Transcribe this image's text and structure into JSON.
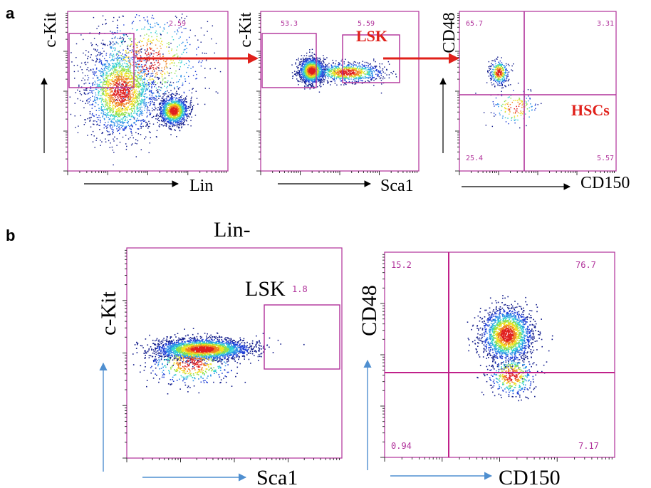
{
  "panels": {
    "a": {
      "letter": "a"
    },
    "b": {
      "letter": "b",
      "subtitle": "Lin-"
    }
  },
  "labels": {
    "red_LSK": "LSK",
    "red_HSCs": "HSCs",
    "b_LSK": "LSK"
  },
  "chart_data": [
    {
      "type": "scatter",
      "panel": "a",
      "plot": 1,
      "xlabel": "Lin",
      "ylabel": "c-Kit",
      "gates": [
        {
          "kind": "rectangle",
          "value": "2.59"
        }
      ],
      "density_populations": [
        {
          "name": "",
          "center": [
            0.33,
            0.5
          ],
          "spread": [
            0.22,
            0.28
          ],
          "count": 2200
        },
        {
          "name": "",
          "center": [
            0.66,
            0.62
          ],
          "spread": [
            0.09,
            0.09
          ],
          "count": 1300
        },
        {
          "name": "",
          "center": [
            0.5,
            0.3
          ],
          "spread": [
            0.35,
            0.3
          ],
          "count": 700
        }
      ]
    },
    {
      "type": "scatter",
      "panel": "a",
      "plot": 2,
      "xlabel": "Sca1",
      "ylabel": "c-Kit",
      "gates": [
        {
          "kind": "rectangle",
          "value": "53.3"
        },
        {
          "kind": "rectangle",
          "value": "5.59"
        }
      ],
      "density_populations": [
        {
          "name": "",
          "center": [
            0.32,
            0.37
          ],
          "spread": [
            0.08,
            0.08
          ],
          "count": 1400
        },
        {
          "name": "",
          "center": [
            0.55,
            0.38
          ],
          "spread": [
            0.22,
            0.06
          ],
          "count": 900
        }
      ]
    },
    {
      "type": "scatter",
      "panel": "a",
      "plot": 3,
      "xlabel": "CD150",
      "ylabel": "CD48",
      "quadrants": [
        "65.7",
        "3.31",
        "25.4",
        "5.57"
      ],
      "density_populations": [
        {
          "name": "",
          "center": [
            0.25,
            0.38
          ],
          "spread": [
            0.06,
            0.08
          ],
          "count": 350
        },
        {
          "name": "",
          "center": [
            0.35,
            0.6
          ],
          "spread": [
            0.15,
            0.12
          ],
          "count": 150
        }
      ]
    },
    {
      "type": "scatter",
      "panel": "b",
      "plot": 1,
      "xlabel": "Sca1",
      "ylabel": "c-Kit",
      "gates": [
        {
          "kind": "rectangle",
          "value": "1.8"
        }
      ],
      "density_populations": [
        {
          "name": "",
          "center": [
            0.35,
            0.48
          ],
          "spread": [
            0.22,
            0.05
          ],
          "count": 2400
        },
        {
          "name": "",
          "center": [
            0.3,
            0.55
          ],
          "spread": [
            0.2,
            0.1
          ],
          "count": 500
        }
      ]
    },
    {
      "type": "scatter",
      "panel": "b",
      "plot": 2,
      "xlabel": "CD150",
      "ylabel": "CD48",
      "quadrants": [
        "15.2",
        "76.7",
        "0.94",
        "7.17"
      ],
      "density_populations": [
        {
          "name": "",
          "center": [
            0.53,
            0.4
          ],
          "spread": [
            0.11,
            0.13
          ],
          "count": 1800
        },
        {
          "name": "",
          "center": [
            0.55,
            0.6
          ],
          "spread": [
            0.1,
            0.1
          ],
          "count": 400
        }
      ]
    }
  ],
  "colors": {
    "gate": "#b0309a",
    "arrow_red": "#e0201a",
    "arrow_blue": "#4f8fd0",
    "density": [
      "#101a8a",
      "#1f3fd6",
      "#2a8ee8",
      "#33d1d0",
      "#8fe04a",
      "#f0e020",
      "#f08020",
      "#e02020"
    ]
  }
}
